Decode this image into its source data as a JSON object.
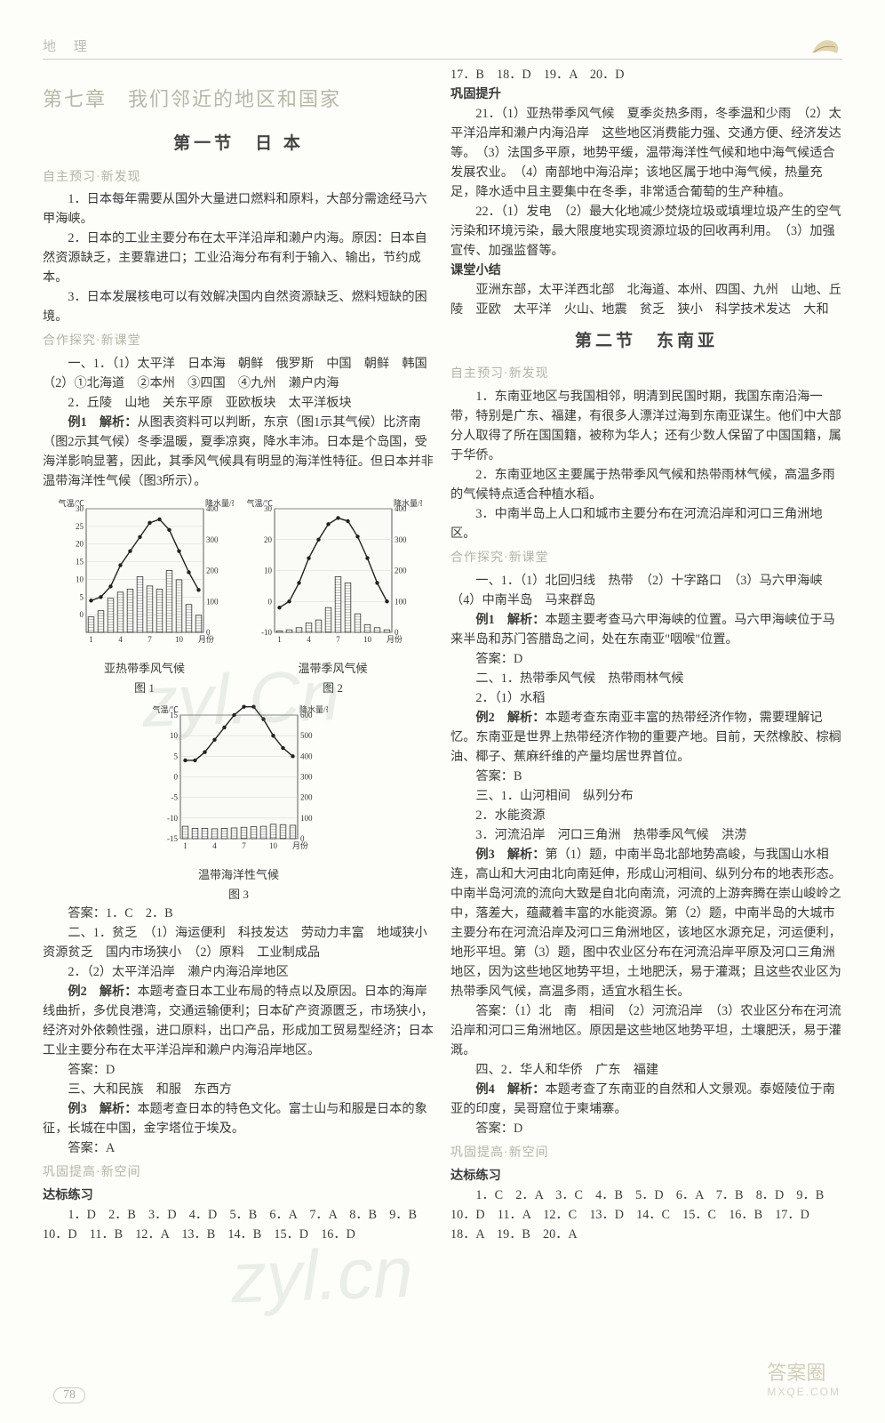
{
  "header": {
    "subject": "地 理",
    "leaf_color": "#c8b070"
  },
  "chapterTitle": "第七章　我们邻近的地区和国家",
  "section1": {
    "title": "第一节　日 本",
    "sub1": "自主预习·新发现",
    "p1": "1．日本每年需要从国外大量进口燃料和原料，大部分需途经马六甲海峡。",
    "p2": "2．日本的工业主要分布在太平洋沿岸和濑户内海。原因：日本自然资源缺乏，主要靠进口；工业沿海分布有利于输入、输出，节约成本。",
    "p3": "3．日本发展核电可以有效解决国内自然资源缺乏、燃料短缺的困境。",
    "sub2": "合作探究·新课堂",
    "p4": "一、1．（1）太平洋　日本海　朝鲜　俄罗斯　中国　朝鲜　韩国　（2）①北海道　②本州　③四国　④九州　濑户内海",
    "p5": "2．丘陵　山地　关东平原　亚欧板块　太平洋板块",
    "p6a": "例1　解析：",
    "p6b": "从图表资料可以判断，东京（图1示其气候）比济南（图2示其气候）冬季温暖，夏季凉爽，降水丰沛。日本是个岛国，受海洋影响显著，因此，其季风气候具有明显的海洋性特征。但日本并非温带海洋性气候（图3所示）。",
    "ansLine": "答案：1．C　2．B",
    "p7": "二、1．贫乏　（1）海运便利　科技发达　劳动力丰富　地域狭小　资源贫乏　国内市场狭小　（2）原料　工业制成品",
    "p8": "2．（2）太平洋沿岸　濑户内海沿岸地区",
    "p9a": "例2　解析：",
    "p9b": "本题考查日本工业布局的特点以及原因。日本的海岸线曲折，多优良港湾，交通运输便利；日本矿产资源匮乏，市场狭小，经济对外依赖性强，进口原料，出口产品，形成加工贸易型经济；日本工业主要分布在太平洋沿岸和濑户内海沿岸地区。",
    "p9ans": "答案：D",
    "p10": "三、大和民族　和服　东西方",
    "p11a": "例3　解析：",
    "p11b": "本题考查日本的特色文化。富士山与和服是日本的象征，长城在中国，金字塔位于埃及。",
    "p11ans": "答案：A",
    "sub3": "巩固提高·新空间",
    "sub3a": "达标练习",
    "mcq1": "1．D　2．B　3．D　4．D　5．B　6．A　7．A　8．B　9．B　10．D　11．B　12．A　13．B　14．B　15．D　16．D"
  },
  "colR": {
    "mcq2": "17．B　18．D　19．A　20．D",
    "sub": "巩固提升",
    "p21": "21．（1）亚热带季风气候　夏季炎热多雨，冬季温和少雨　（2）太平洋沿岸和濑户内海沿岸　这些地区消费能力强、交通方便、经济发达等。　（3）法国多平原，地势平缓，温带海洋性气候和地中海气候适合发展农业。　（4）南部地中海沿岸；该地区属于地中海气候，热量充足，降水适中且主要集中在冬季，非常适合葡萄的生产种植。",
    "p22": "22．（1）发电　（2）最大化地减少焚烧垃圾或填埋垃圾产生的空气污染和环境污染，最大限度地实现资源垃圾的回收再利用。　（3）加强宣传、加强监督等。",
    "sub2": "课堂小结",
    "p23": "亚洲东部，太平洋西北部　北海道、本州、四国、九州　山地、丘陵　亚欧　太平洋　火山、地震　贫乏　狭小　科学技术发达　大和"
  },
  "section2": {
    "title": "第二节　东南亚",
    "sub1": "自主预习·新发现",
    "p1": "1．东南亚地区与我国相邻，明清到民国时期，我国东南沿海一带，特别是广东、福建，有很多人漂洋过海到东南亚谋生。他们中大部分人取得了所在国国籍，被称为华人；还有少数人保留了中国国籍，属于华侨。",
    "p2": "2．东南亚地区主要属于热带季风气候和热带雨林气候，高温多雨的气候特点适合种植水稻。",
    "p3": "3．中南半岛上人口和城市主要分布在河流沿岸和河口三角洲地区。",
    "sub2": "合作探究·新课堂",
    "p4": "一、1．（1）北回归线　热带　（2）十字路口　（3）马六甲海峡　（4）中南半岛　马来群岛",
    "p5a": "例1　解析：",
    "p5b": "本题主要考查马六甲海峡的位置。马六甲海峡位于马来半岛和苏门答腊岛之间，处在东南亚\"咽喉\"位置。",
    "p5ans": "答案：D",
    "p6": "二、1．热带季风气候　热带雨林气候",
    "p7": "2．（1）水稻",
    "p8a": "例2　解析：",
    "p8b": "本题考查东南亚丰富的热带经济作物，需要理解记忆。东南亚是世界上热带经济作物的重要产地。目前，天然橡胶、棕榈油、椰子、蕉麻纤维的产量均居世界首位。",
    "p8ans": "答案：B",
    "p9": "三、1．山河相间　纵列分布",
    "p10": "2．水能资源",
    "p11": "3．河流沿岸　河口三角洲　热带季风气候　洪涝",
    "p12a": "例3　解析：",
    "p12b": "第（1）题，中南半岛北部地势高峻，与我国山水相连，高山和大河由北向南延伸，形成山河相间、纵列分布的地表形态。中南半岛河流的流向大致是自北向南流，河流的上游奔腾在崇山峻岭之中，落差大，蕴藏着丰富的水能资源。第（2）题，中南半岛的大城市主要分布在河流沿岸及河口三角洲地区，该地区水源充足，河运便利，地形平坦。第（3）题，图中农业区分布在河流沿岸平原及河口三角洲地区，因为这些地区地势平坦，土地肥沃，易于灌溉；且这些农业区为热带季风气候，高温多雨，适宜水稻生长。",
    "p12ans": "答案：（1）北　南　相间　（2）河流沿岸　（3）农业区分布在河流沿岸和河口三角洲地区。原因是这些地区地势平坦，土壤肥沃，易于灌溉。",
    "p13": "四、2．华人和华侨　广东　福建",
    "p14a": "例4　解析：",
    "p14b": "本题考查了东南亚的自然和人文景观。泰姬陵位于南亚的印度，吴哥窟位于柬埔寨。",
    "p14ans": "答案：D",
    "sub3": "巩固提高·新空间",
    "sub3a": "达标练习",
    "mcq": "1．C　2．A　3．C　4．B　5．D　6．A　7．B　8．D　9．B　10．D　11．A　12．C　13．D　14．C　15．C　16．B　17．D　18．A　19．B　20．A"
  },
  "charts": {
    "chart1": {
      "caption_top": "亚热带季风气候",
      "caption_bottom": "图 1",
      "temp": [
        4,
        5,
        8,
        14,
        18,
        22,
        26,
        27,
        24,
        18,
        12,
        7
      ],
      "precip": [
        50,
        70,
        110,
        130,
        140,
        180,
        150,
        140,
        200,
        170,
        90,
        55
      ],
      "temp_axis": {
        "min": -5,
        "max": 30,
        "ticks": [
          0,
          5,
          10,
          15,
          20,
          25,
          30
        ],
        "label": "气温/℃"
      },
      "precip_axis": {
        "min": 0,
        "max": 400,
        "ticks": [
          0,
          100,
          200,
          300,
          400
        ],
        "label": "降水量/毫米"
      },
      "line_color": "#222",
      "bar_color": "#444",
      "bg": "#fafaf6"
    },
    "chart2": {
      "caption_top": "温带季风气候",
      "caption_bottom": "图 2",
      "temp": [
        -2,
        0,
        6,
        14,
        20,
        25,
        27,
        26,
        21,
        14,
        6,
        0
      ],
      "precip": [
        5,
        8,
        15,
        30,
        40,
        80,
        180,
        160,
        60,
        25,
        15,
        8
      ],
      "temp_axis": {
        "min": -10,
        "max": 30,
        "ticks": [
          -10,
          0,
          10,
          20,
          30
        ],
        "label": "气温/℃"
      },
      "precip_axis": {
        "min": 0,
        "max": 400,
        "ticks": [
          0,
          100,
          200,
          300,
          400
        ],
        "label": "降水量/毫米"
      }
    },
    "chart3": {
      "caption_top": "温带海洋性气候",
      "caption_bottom": "图 3",
      "temp": [
        4,
        4,
        6,
        9,
        12,
        15,
        17,
        17,
        14,
        10,
        7,
        5
      ],
      "precip": [
        60,
        50,
        50,
        48,
        50,
        52,
        55,
        58,
        60,
        70,
        68,
        65
      ],
      "temp_axis": {
        "min": -15,
        "max": 15,
        "ticks": [
          -15,
          -10,
          -5,
          0,
          5,
          10,
          15
        ],
        "label": "气温/℃"
      },
      "precip_axis": {
        "min": 0,
        "max": 600,
        "ticks": [
          0,
          100,
          200,
          300,
          400,
          500,
          600
        ],
        "label": "降水量/毫米"
      }
    },
    "x_label": "月份",
    "months": [
      1,
      4,
      7,
      10
    ]
  },
  "pageNumber": "78",
  "watermark1": "zyl.Cn",
  "watermark2": "zyl.cn",
  "stamp": {
    "big": "答案圈",
    "small": "MXQE.COM"
  }
}
